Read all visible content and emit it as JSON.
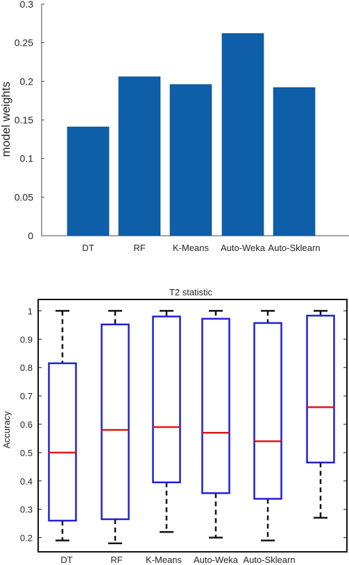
{
  "chart_data": [
    {
      "type": "bar",
      "categories": [
        "DT",
        "RF",
        "K-Means",
        "Auto-Weka",
        "Auto-Sklearn"
      ],
      "values": [
        0.141,
        0.206,
        0.196,
        0.262,
        0.192
      ],
      "ylabel": "model weights",
      "ylim": [
        0,
        0.3
      ],
      "yticks": [
        0,
        0.05,
        0.1,
        0.15,
        0.2,
        0.25,
        0.3
      ],
      "ytick_labels": [
        "0",
        "0.05",
        "0.1",
        "0.15",
        "0.2",
        "0.25",
        "0.3"
      ],
      "bar_color": "#0f5ea8",
      "grid": false
    },
    {
      "type": "box",
      "title": "T2 statistic",
      "categories": [
        "DT",
        "RF",
        "K-Means",
        "Auto-Weka",
        "Auto-Sklearn",
        ""
      ],
      "boxes": [
        {
          "whisker_low": 0.19,
          "q1": 0.26,
          "median": 0.5,
          "q3": 0.815,
          "whisker_high": 1.0
        },
        {
          "whisker_low": 0.18,
          "q1": 0.265,
          "median": 0.58,
          "q3": 0.952,
          "whisker_high": 1.0
        },
        {
          "whisker_low": 0.22,
          "q1": 0.395,
          "median": 0.59,
          "q3": 0.98,
          "whisker_high": 1.0
        },
        {
          "whisker_low": 0.2,
          "q1": 0.357,
          "median": 0.57,
          "q3": 0.972,
          "whisker_high": 1.0
        },
        {
          "whisker_low": 0.19,
          "q1": 0.337,
          "median": 0.54,
          "q3": 0.957,
          "whisker_high": 1.0
        },
        {
          "whisker_low": 0.27,
          "q1": 0.465,
          "median": 0.66,
          "q3": 0.983,
          "whisker_high": 1.0
        }
      ],
      "ylabel": "Accuracy",
      "ylim": [
        0.15,
        1.04
      ],
      "yticks": [
        0.2,
        0.3,
        0.4,
        0.5,
        0.6,
        0.7,
        0.8,
        0.9,
        1.0
      ],
      "ytick_labels": [
        "0.2",
        "0.3",
        "0.4",
        "0.5",
        "0.6",
        "0.7",
        "0.8",
        "0.9",
        "1"
      ],
      "box_color": "#1f1fd6",
      "median_color": "#e01414",
      "grid": false
    }
  ]
}
